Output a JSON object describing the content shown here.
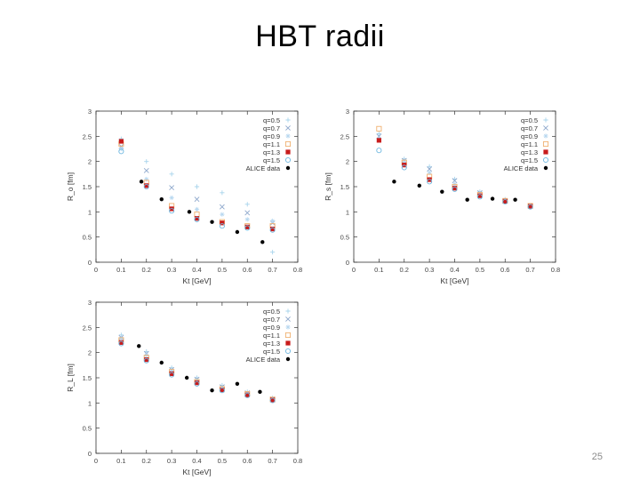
{
  "slide": {
    "title": "HBT radii",
    "page_number": "25"
  },
  "colors": {
    "q0.5": "#a8d4ec",
    "q0.7": "#8ea8cc",
    "q0.9": "#b8d8f0",
    "q1.1": "#f0b070",
    "q1.3": "#c81c1c",
    "q1.5": "#70b8e0",
    "alice": "#000000"
  },
  "legend": [
    {
      "label": "q=0.5",
      "marker": "plus",
      "color_key": "q0.5"
    },
    {
      "label": "q=0.7",
      "marker": "cross",
      "color_key": "q0.7"
    },
    {
      "label": "q=0.9",
      "marker": "star",
      "color_key": "q0.9"
    },
    {
      "label": "q=1.1",
      "marker": "square",
      "color_key": "q1.1"
    },
    {
      "label": "q=1.3",
      "marker": "filled-square",
      "color_key": "q1.3"
    },
    {
      "label": "q=1.5",
      "marker": "circle",
      "color_key": "q1.5"
    },
    {
      "label": "ALICE data",
      "marker": "dot",
      "color_key": "alice"
    }
  ],
  "chart_data": [
    {
      "type": "scatter",
      "title": "",
      "xlabel": "Kt [GeV]",
      "ylabel": "R_o [fm]",
      "xlim": [
        0,
        0.8
      ],
      "ylim": [
        0,
        3
      ],
      "xticks": [
        "0",
        "0.1",
        "0.2",
        "0.3",
        "0.4",
        "0.5",
        "0.6",
        "0.7",
        "0.8"
      ],
      "yticks": [
        "0",
        "0.5",
        "1",
        "1.5",
        "2",
        "2.5",
        "3"
      ],
      "x": [
        0.1,
        0.2,
        0.3,
        0.4,
        0.5,
        0.6,
        0.7
      ],
      "series": [
        {
          "name": "q=0.5",
          "values": [
            2.45,
            2.0,
            1.75,
            1.5,
            1.38,
            1.15,
            0.2
          ]
        },
        {
          "name": "q=0.7",
          "values": [
            2.3,
            1.82,
            1.48,
            1.25,
            1.1,
            0.98,
            0.78
          ]
        },
        {
          "name": "q=0.9",
          "values": [
            2.25,
            1.65,
            1.28,
            1.05,
            0.95,
            0.85,
            0.82
          ]
        },
        {
          "name": "q=1.1",
          "values": [
            2.35,
            1.58,
            1.12,
            0.95,
            0.8,
            0.72,
            0.72
          ]
        },
        {
          "name": "q=1.3",
          "values": [
            2.4,
            1.52,
            1.06,
            0.87,
            0.78,
            0.7,
            0.66
          ]
        },
        {
          "name": "q=1.5",
          "values": [
            2.2,
            1.5,
            1.02,
            0.85,
            0.72,
            0.68,
            0.64
          ]
        }
      ],
      "alice": {
        "x": [
          0.18,
          0.26,
          0.37,
          0.46,
          0.56,
          0.66
        ],
        "y": [
          1.6,
          1.25,
          1.0,
          0.8,
          0.6,
          0.4
        ]
      }
    },
    {
      "type": "scatter",
      "title": "",
      "xlabel": "Kt [GeV]",
      "ylabel": "R_s [fm]",
      "xlim": [
        0,
        0.8
      ],
      "ylim": [
        0,
        3
      ],
      "xticks": [
        "0",
        "0.1",
        "0.2",
        "0.3",
        "0.4",
        "0.5",
        "0.6",
        "0.7",
        "0.8"
      ],
      "yticks": [
        "0",
        "0.5",
        "1",
        "1.5",
        "2",
        "2.5",
        "3"
      ],
      "x": [
        0.1,
        0.2,
        0.3,
        0.4,
        0.5,
        0.6,
        0.7
      ],
      "series": [
        {
          "name": "q=0.5",
          "values": [
            2.55,
            2.05,
            1.9,
            1.65,
            1.4,
            1.25,
            1.12
          ]
        },
        {
          "name": "q=0.7",
          "values": [
            2.5,
            2.02,
            1.85,
            1.62,
            1.38,
            1.22,
            1.12
          ]
        },
        {
          "name": "q=0.9",
          "values": [
            2.45,
            2.0,
            1.78,
            1.55,
            1.36,
            1.22,
            1.12
          ]
        },
        {
          "name": "q=1.1",
          "values": [
            2.65,
            1.98,
            1.7,
            1.5,
            1.34,
            1.22,
            1.12
          ]
        },
        {
          "name": "q=1.3",
          "values": [
            2.42,
            1.93,
            1.64,
            1.47,
            1.32,
            1.21,
            1.11
          ]
        },
        {
          "name": "q=1.5",
          "values": [
            2.22,
            1.88,
            1.6,
            1.45,
            1.3,
            1.2,
            1.1
          ]
        }
      ],
      "alice": {
        "x": [
          0.16,
          0.26,
          0.35,
          0.45,
          0.55,
          0.64
        ],
        "y": [
          1.6,
          1.52,
          1.4,
          1.24,
          1.26,
          1.24
        ]
      }
    },
    {
      "type": "scatter",
      "title": "",
      "xlabel": "Kt [GeV]",
      "ylabel": "R_L [fm]",
      "xlim": [
        0,
        0.8
      ],
      "ylim": [
        0,
        3
      ],
      "xticks": [
        "0",
        "0.1",
        "0.2",
        "0.3",
        "0.4",
        "0.5",
        "0.6",
        "0.7",
        "0.8"
      ],
      "yticks": [
        "0",
        "0.5",
        "1",
        "1.5",
        "2",
        "2.5",
        "3"
      ],
      "x": [
        0.1,
        0.2,
        0.3,
        0.4,
        0.5,
        0.6,
        0.7
      ],
      "series": [
        {
          "name": "q=0.5",
          "values": [
            2.35,
            2.02,
            1.7,
            1.5,
            1.35,
            1.22,
            1.1
          ]
        },
        {
          "name": "q=0.7",
          "values": [
            2.3,
            1.98,
            1.66,
            1.47,
            1.32,
            1.2,
            1.08
          ]
        },
        {
          "name": "q=0.9",
          "values": [
            2.28,
            1.95,
            1.64,
            1.45,
            1.3,
            1.19,
            1.08
          ]
        },
        {
          "name": "q=1.1",
          "values": [
            2.25,
            1.9,
            1.62,
            1.42,
            1.28,
            1.18,
            1.07
          ]
        },
        {
          "name": "q=1.3",
          "values": [
            2.2,
            1.86,
            1.58,
            1.4,
            1.26,
            1.16,
            1.06
          ]
        },
        {
          "name": "q=1.5",
          "values": [
            2.18,
            1.84,
            1.56,
            1.38,
            1.25,
            1.15,
            1.05
          ]
        }
      ],
      "alice": {
        "x": [
          0.17,
          0.26,
          0.36,
          0.46,
          0.56,
          0.65
        ],
        "y": [
          2.13,
          1.8,
          1.5,
          1.25,
          1.38,
          1.22
        ]
      }
    }
  ]
}
